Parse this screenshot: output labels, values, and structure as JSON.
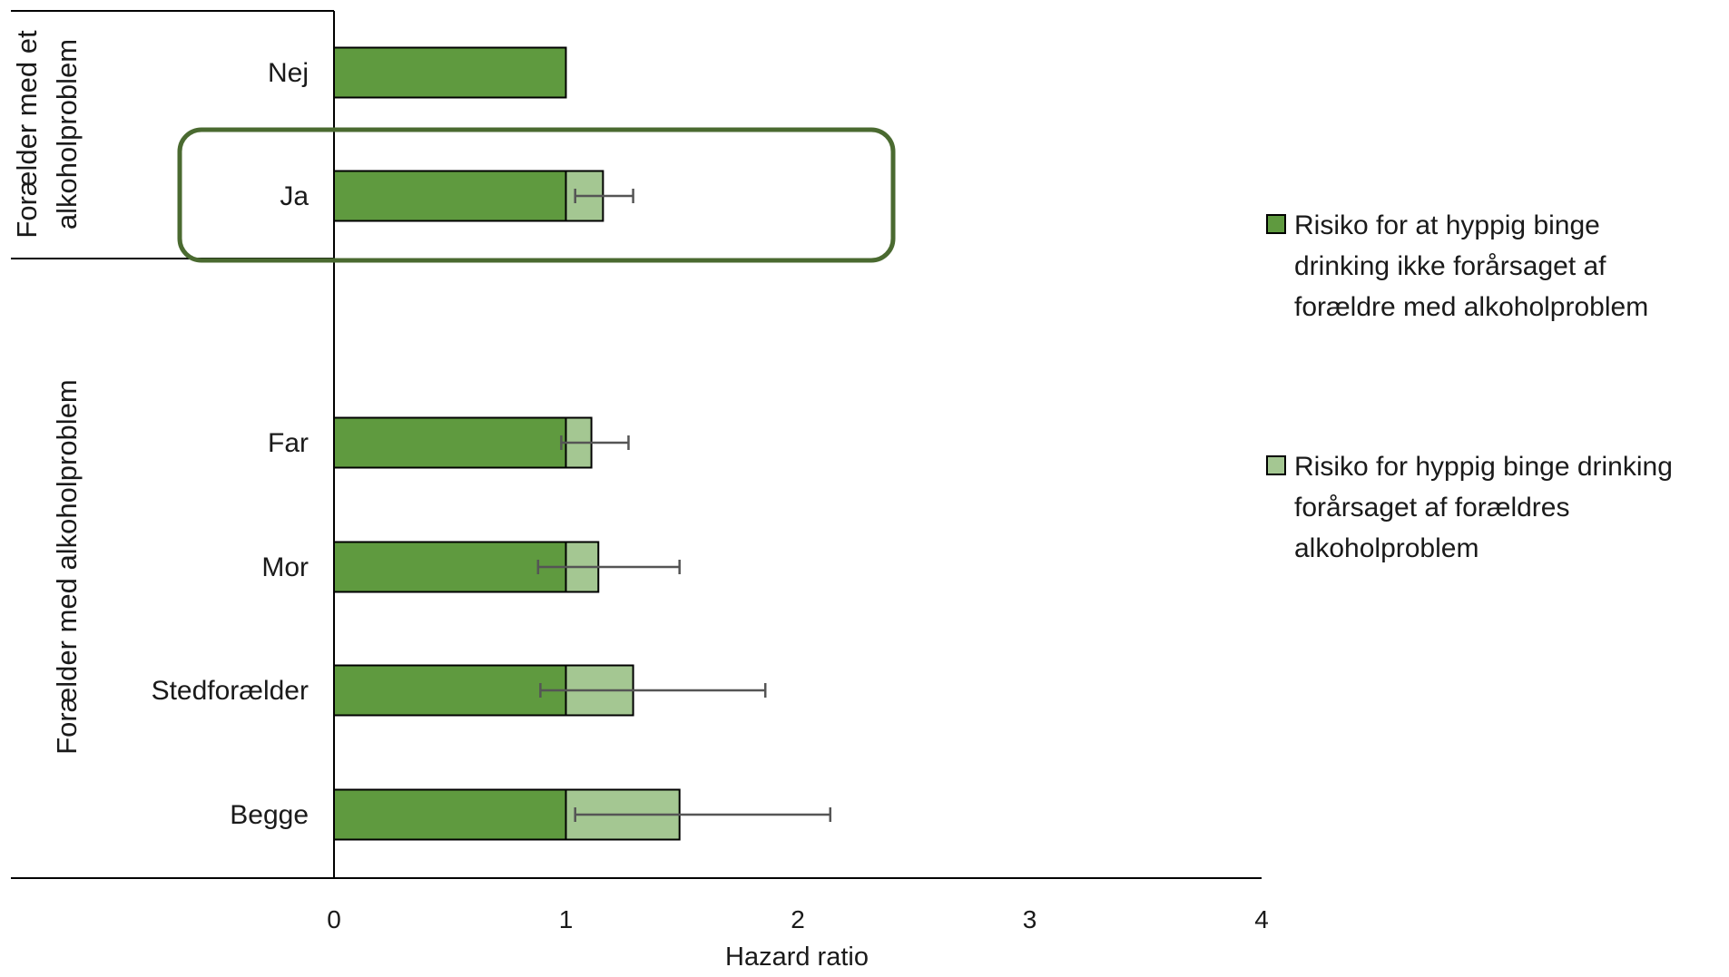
{
  "chart_data": {
    "type": "bar",
    "orientation": "horizontal",
    "stacked": true,
    "categories": [
      "Nej",
      "Ja",
      "Far",
      "Mor",
      "Stedforælder",
      "Begge"
    ],
    "category_groups": [
      {
        "label_lines": [
          "Forælder med et",
          "alkoholproblem"
        ],
        "categories": [
          "Nej",
          "Ja"
        ]
      },
      {
        "label_lines": [
          "Forælder med alkoholproblem"
        ],
        "categories": [
          "Far",
          "Mor",
          "Stedforælder",
          "Begge"
        ]
      }
    ],
    "series": [
      {
        "name_lines": [
          "Risiko for at hyppig binge",
          "drinking  ikke forårsaget af",
          "forældre med alkoholproblem"
        ],
        "color": "#5f9a3f",
        "values": [
          1.0,
          1.0,
          1.0,
          1.0,
          1.0,
          1.0
        ]
      },
      {
        "name_lines": [
          "Risiko for hyppig binge drinking",
          "forårsaget af forældres",
          "alkoholproblem"
        ],
        "color": "#a4c792",
        "values": [
          0,
          0.16,
          0.11,
          0.14,
          0.29,
          0.49
        ]
      }
    ],
    "hazard_ratio": [
      1.0,
      1.16,
      1.11,
      1.14,
      1.29,
      1.49
    ],
    "error_bars": [
      null,
      [
        1.04,
        1.29
      ],
      [
        0.98,
        1.27
      ],
      [
        0.88,
        1.49
      ],
      [
        0.89,
        1.86
      ],
      [
        1.04,
        2.14
      ]
    ],
    "highlight_category": "Ja",
    "highlight_color": "#4a6a30",
    "xlabel": "Hazard ratio",
    "xlim": [
      0,
      4
    ],
    "xticks": [
      "0",
      "1",
      "2",
      "3",
      "4"
    ],
    "legend_position": "right",
    "grid": false
  }
}
